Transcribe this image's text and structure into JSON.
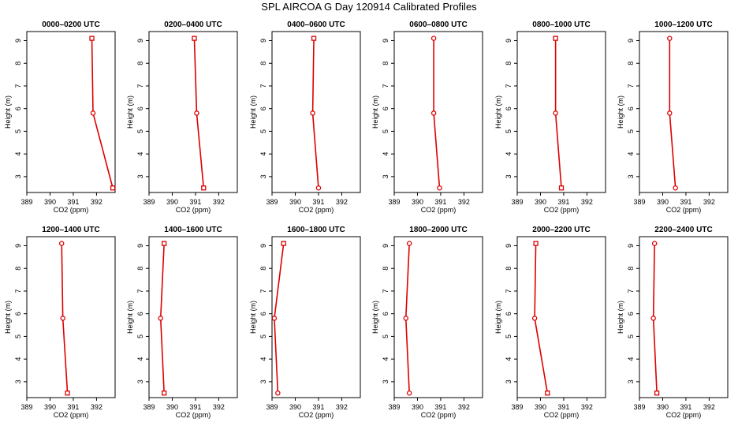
{
  "figure": {
    "title": "SPL AIRCOA G  Day 120914  Calibrated Profiles"
  },
  "style": {
    "line_color": "#dd0000",
    "frame_color": "#000000"
  },
  "chart_data": [
    {
      "type": "line",
      "title": "0000–0200 UTC",
      "xlabel": "CO2 (ppm)",
      "ylabel": "Height (m)",
      "xlim": [
        389,
        392.8
      ],
      "ylim": [
        2.3,
        9.4
      ],
      "xticks": [
        389,
        390,
        391,
        392
      ],
      "yticks": [
        3,
        4,
        5,
        6,
        7,
        8,
        9
      ],
      "series": [
        {
          "x": [
            392.7,
            391.85,
            391.8
          ],
          "y": [
            2.5,
            5.8,
            9.1
          ],
          "markers": [
            "square",
            "circle",
            "square"
          ]
        }
      ]
    },
    {
      "type": "line",
      "title": "0200–0400 UTC",
      "xlabel": "CO2 (ppm)",
      "ylabel": "Height (m)",
      "xlim": [
        389,
        392.8
      ],
      "ylim": [
        2.3,
        9.4
      ],
      "xticks": [
        389,
        390,
        391,
        392
      ],
      "yticks": [
        3,
        4,
        5,
        6,
        7,
        8,
        9
      ],
      "series": [
        {
          "x": [
            391.35,
            391.05,
            390.95
          ],
          "y": [
            2.5,
            5.8,
            9.1
          ],
          "markers": [
            "square",
            "circle",
            "square"
          ]
        }
      ]
    },
    {
      "type": "line",
      "title": "0400–0600 UTC",
      "xlabel": "CO2 (ppm)",
      "ylabel": "Height (m)",
      "xlim": [
        389,
        392.8
      ],
      "ylim": [
        2.3,
        9.4
      ],
      "xticks": [
        389,
        390,
        391,
        392
      ],
      "yticks": [
        3,
        4,
        5,
        6,
        7,
        8,
        9
      ],
      "series": [
        {
          "x": [
            391.0,
            390.75,
            390.8
          ],
          "y": [
            2.5,
            5.8,
            9.1
          ],
          "markers": [
            "circle",
            "circle",
            "square"
          ]
        }
      ]
    },
    {
      "type": "line",
      "title": "0600–0800 UTC",
      "xlabel": "CO2 (ppm)",
      "ylabel": "Height (m)",
      "xlim": [
        389,
        392.8
      ],
      "ylim": [
        2.3,
        9.4
      ],
      "xticks": [
        389,
        390,
        391,
        392
      ],
      "yticks": [
        3,
        4,
        5,
        6,
        7,
        8,
        9
      ],
      "series": [
        {
          "x": [
            390.95,
            390.7,
            390.7
          ],
          "y": [
            2.5,
            5.8,
            9.1
          ],
          "markers": [
            "circle",
            "circle",
            "circle"
          ]
        }
      ]
    },
    {
      "type": "line",
      "title": "0800–1000 UTC",
      "xlabel": "CO2 (ppm)",
      "ylabel": "Height (m)",
      "xlim": [
        389,
        392.8
      ],
      "ylim": [
        2.3,
        9.4
      ],
      "xticks": [
        389,
        390,
        391,
        392
      ],
      "yticks": [
        3,
        4,
        5,
        6,
        7,
        8,
        9
      ],
      "series": [
        {
          "x": [
            390.9,
            390.65,
            390.65
          ],
          "y": [
            2.5,
            5.8,
            9.1
          ],
          "markers": [
            "square",
            "circle",
            "square"
          ]
        }
      ]
    },
    {
      "type": "line",
      "title": "1000–1200 UTC",
      "xlabel": "CO2 (ppm)",
      "ylabel": "Height (m)",
      "xlim": [
        389,
        392.8
      ],
      "ylim": [
        2.3,
        9.4
      ],
      "xticks": [
        389,
        390,
        391,
        392
      ],
      "yticks": [
        3,
        4,
        5,
        6,
        7,
        8,
        9
      ],
      "series": [
        {
          "x": [
            390.55,
            390.3,
            390.3
          ],
          "y": [
            2.5,
            5.8,
            9.1
          ],
          "markers": [
            "circle",
            "circle",
            "circle"
          ]
        }
      ]
    },
    {
      "type": "line",
      "title": "1200–1400 UTC",
      "xlabel": "CO2 (ppm)",
      "ylabel": "Height (m)",
      "xlim": [
        389,
        392.8
      ],
      "ylim": [
        2.3,
        9.4
      ],
      "xticks": [
        389,
        390,
        391,
        392
      ],
      "yticks": [
        3,
        4,
        5,
        6,
        7,
        8,
        9
      ],
      "series": [
        {
          "x": [
            390.75,
            390.55,
            390.5
          ],
          "y": [
            2.5,
            5.8,
            9.1
          ],
          "markers": [
            "square",
            "circle",
            "circle"
          ]
        }
      ]
    },
    {
      "type": "line",
      "title": "1400–1600 UTC",
      "xlabel": "CO2 (ppm)",
      "ylabel": "Height (m)",
      "xlim": [
        389,
        392.8
      ],
      "ylim": [
        2.3,
        9.4
      ],
      "xticks": [
        389,
        390,
        391,
        392
      ],
      "yticks": [
        3,
        4,
        5,
        6,
        7,
        8,
        9
      ],
      "series": [
        {
          "x": [
            389.65,
            389.5,
            389.65
          ],
          "y": [
            2.5,
            5.8,
            9.1
          ],
          "markers": [
            "square",
            "circle",
            "square"
          ]
        }
      ]
    },
    {
      "type": "line",
      "title": "1600–1800 UTC",
      "xlabel": "CO2 (ppm)",
      "ylabel": "Height (m)",
      "xlim": [
        389,
        392.8
      ],
      "ylim": [
        2.3,
        9.4
      ],
      "xticks": [
        389,
        390,
        391,
        392
      ],
      "yticks": [
        3,
        4,
        5,
        6,
        7,
        8,
        9
      ],
      "series": [
        {
          "x": [
            389.25,
            389.1,
            389.5
          ],
          "y": [
            2.5,
            5.8,
            9.1
          ],
          "markers": [
            "circle",
            "circle",
            "square"
          ]
        }
      ]
    },
    {
      "type": "line",
      "title": "1800–2000 UTC",
      "xlabel": "CO2 (ppm)",
      "ylabel": "Height (m)",
      "xlim": [
        389,
        392.8
      ],
      "ylim": [
        2.3,
        9.4
      ],
      "xticks": [
        389,
        390,
        391,
        392
      ],
      "yticks": [
        3,
        4,
        5,
        6,
        7,
        8,
        9
      ],
      "series": [
        {
          "x": [
            389.65,
            389.5,
            389.65
          ],
          "y": [
            2.5,
            5.8,
            9.1
          ],
          "markers": [
            "circle",
            "circle",
            "circle"
          ]
        }
      ]
    },
    {
      "type": "line",
      "title": "2000–2200 UTC",
      "xlabel": "CO2 (ppm)",
      "ylabel": "Height (m)",
      "xlim": [
        389,
        392.8
      ],
      "ylim": [
        2.3,
        9.4
      ],
      "xticks": [
        389,
        390,
        391,
        392
      ],
      "yticks": [
        3,
        4,
        5,
        6,
        7,
        8,
        9
      ],
      "series": [
        {
          "x": [
            390.3,
            389.75,
            389.8
          ],
          "y": [
            2.5,
            5.8,
            9.1
          ],
          "markers": [
            "square",
            "circle",
            "square"
          ]
        }
      ]
    },
    {
      "type": "line",
      "title": "2200–2400 UTC",
      "xlabel": "CO2 (ppm)",
      "ylabel": "Height (m)",
      "xlim": [
        389,
        392.8
      ],
      "ylim": [
        2.3,
        9.4
      ],
      "xticks": [
        389,
        390,
        391,
        392
      ],
      "yticks": [
        3,
        4,
        5,
        6,
        7,
        8,
        9
      ],
      "series": [
        {
          "x": [
            389.75,
            389.6,
            389.65
          ],
          "y": [
            2.5,
            5.8,
            9.1
          ],
          "markers": [
            "square",
            "circle",
            "circle"
          ]
        }
      ]
    }
  ]
}
